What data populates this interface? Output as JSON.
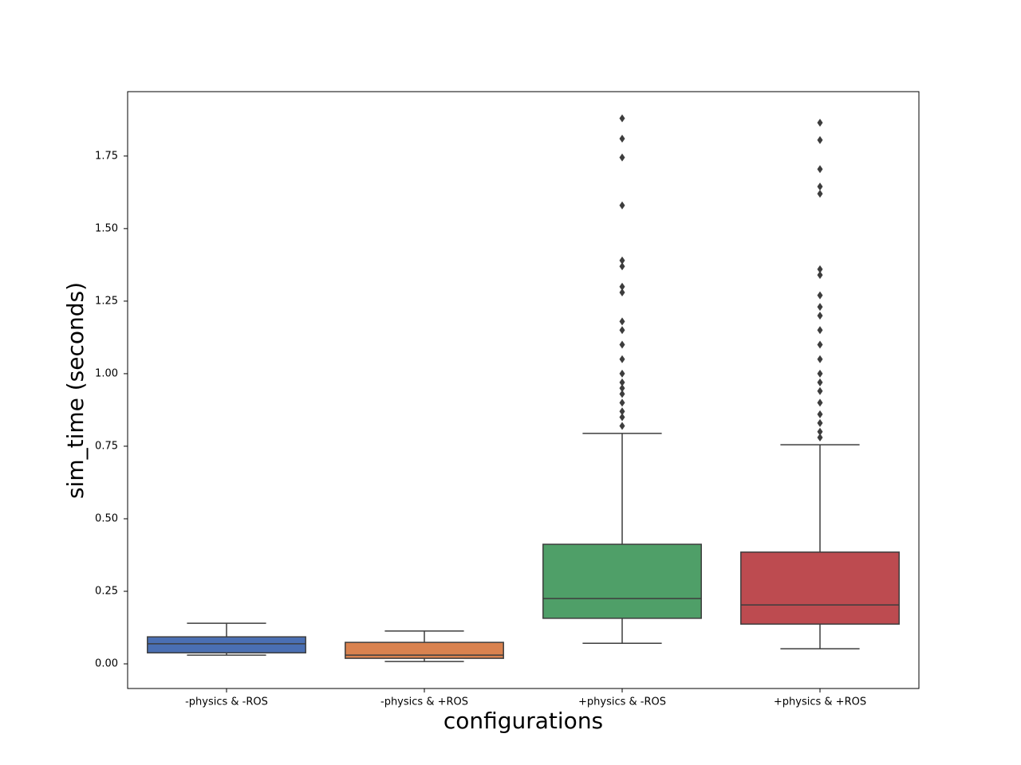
{
  "chart_data": {
    "type": "box",
    "xlabel": "configurations",
    "ylabel": "sim_time (seconds)",
    "categories": [
      "-physics & -ROS",
      "-physics & +ROS",
      "+physics & -ROS",
      "+physics & +ROS"
    ],
    "colors": [
      "#4a6fb3",
      "#d9824f",
      "#4f9f68",
      "#bd4b50"
    ],
    "boxes": [
      {
        "low": 0.03,
        "q1": 0.038,
        "median": 0.069,
        "q3": 0.093,
        "high": 0.14,
        "outliers": []
      },
      {
        "low": 0.008,
        "q1": 0.019,
        "median": 0.03,
        "q3": 0.074,
        "high": 0.113,
        "outliers": []
      },
      {
        "low": 0.071,
        "q1": 0.157,
        "median": 0.225,
        "q3": 0.412,
        "high": 0.794,
        "outliers": [
          1.88,
          1.81,
          1.745,
          1.58,
          1.39,
          1.37,
          1.3,
          1.28,
          1.18,
          1.15,
          1.1,
          1.05,
          1.0,
          0.97,
          0.95,
          0.93,
          0.9,
          0.87,
          0.85,
          0.82
        ]
      },
      {
        "low": 0.052,
        "q1": 0.137,
        "median": 0.203,
        "q3": 0.385,
        "high": 0.755,
        "outliers": [
          1.865,
          1.805,
          1.705,
          1.645,
          1.62,
          1.36,
          1.34,
          1.27,
          1.23,
          1.2,
          1.15,
          1.1,
          1.05,
          1.0,
          0.97,
          0.94,
          0.9,
          0.86,
          0.83,
          0.8,
          0.78
        ]
      }
    ],
    "ylim": [
      -0.085,
      1.972
    ],
    "yticks": [
      {
        "value": 0,
        "label": "0.00"
      },
      {
        "value": 0.25,
        "label": "0.25"
      },
      {
        "value": 0.5,
        "label": "0.50"
      },
      {
        "value": 0.75,
        "label": "0.75"
      },
      {
        "value": 1,
        "label": "1.00"
      },
      {
        "value": 1.25,
        "label": "1.25"
      },
      {
        "value": 1.5,
        "label": "1.50"
      },
      {
        "value": 1.75,
        "label": "1.75"
      }
    ]
  }
}
